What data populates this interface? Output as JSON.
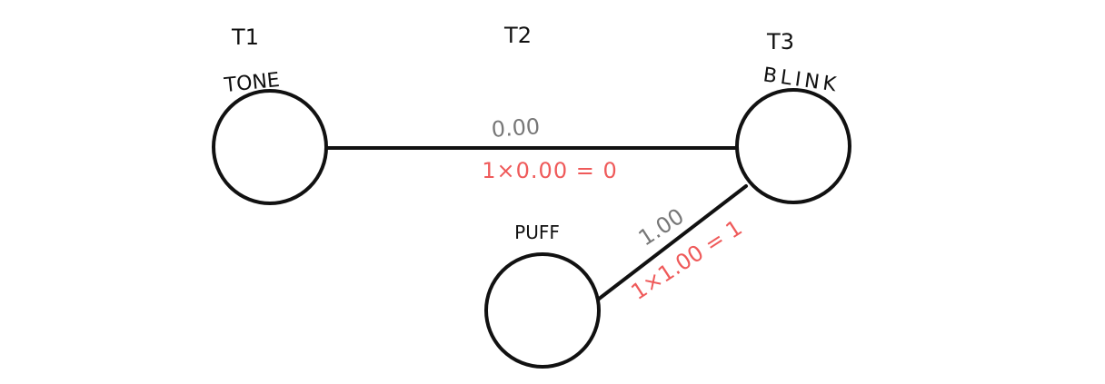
{
  "time_labels": {
    "t1": "T1",
    "t2": "T2",
    "t3": "T3"
  },
  "nodes": {
    "tone": {
      "label": "TONE"
    },
    "blink": {
      "label": "BLINK"
    },
    "puff": {
      "label": "PUFF"
    }
  },
  "edges": {
    "tone_blink": {
      "weight": "0.00",
      "product": "1×0.00 = 0"
    },
    "puff_blink": {
      "weight": "1.00",
      "product": "1×1.00 = 1"
    }
  },
  "colors": {
    "ink": "#111111",
    "weight": "#777777",
    "product": "#ef5a5a"
  }
}
